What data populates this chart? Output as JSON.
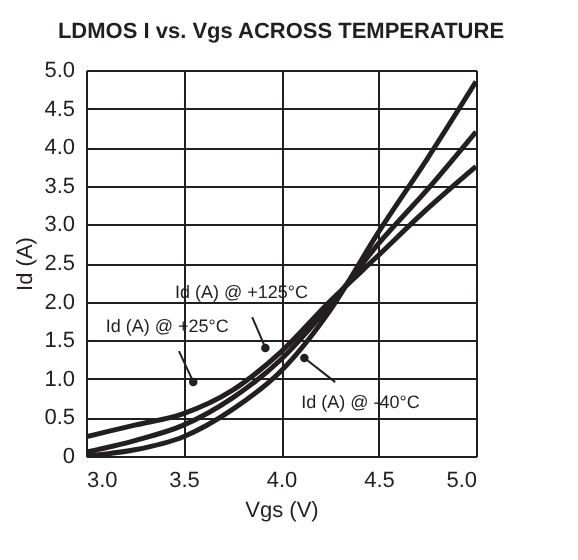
{
  "chart_data": {
    "type": "line",
    "title": "LDMOS I vs. Vgs ACROSS TEMPERATURE",
    "xlabel": "Vgs (V)",
    "ylabel": "Id (A)",
    "x": [
      3.0,
      3.25,
      3.5,
      3.75,
      4.0,
      4.25,
      4.5,
      4.75,
      5.0
    ],
    "series": [
      {
        "color": "#231f20",
        "values": [
          0.25,
          0.4,
          0.55,
          0.85,
          1.35,
          2.0,
          2.6,
          3.2,
          3.75
        ]
      },
      {
        "color": "#231f20",
        "values": [
          0.05,
          0.2,
          0.4,
          0.75,
          1.25,
          1.95,
          2.75,
          3.45,
          4.2
        ]
      },
      {
        "color": "#231f20",
        "values": [
          0.0,
          0.08,
          0.25,
          0.6,
          1.1,
          1.88,
          2.9,
          3.85,
          4.85
        ]
      }
    ],
    "annotations": [
      {
        "text": "Id (A) @ +125°C",
        "x": 3.92,
        "y": 1.4
      },
      {
        "text": "Id (A) @ +25°C",
        "x": 3.55,
        "y": 0.96
      },
      {
        "text": "Id (A) @ -40°C",
        "x": 4.12,
        "y": 1.27
      }
    ],
    "xlim": [
      3.0,
      5.0
    ],
    "xticks": [
      {
        "value": 3,
        "label": "3.0"
      },
      3.5,
      {
        "value": 4,
        "label": "4.0"
      },
      4.5,
      {
        "value": 5,
        "label": "5.0"
      }
    ],
    "ylim": [
      0,
      5.0
    ],
    "yticks": [
      0,
      0.5,
      {
        "value": 1,
        "label": "1.0"
      },
      1.5,
      {
        "value": 2,
        "label": "2.0"
      },
      2.5,
      {
        "value": 3,
        "label": "3.0"
      },
      3.5,
      {
        "value": 4,
        "label": "4.0"
      },
      4.5,
      {
        "value": 5,
        "label": "5.0"
      }
    ],
    "grid": true,
    "marker": "none",
    "line_style": "solid"
  }
}
